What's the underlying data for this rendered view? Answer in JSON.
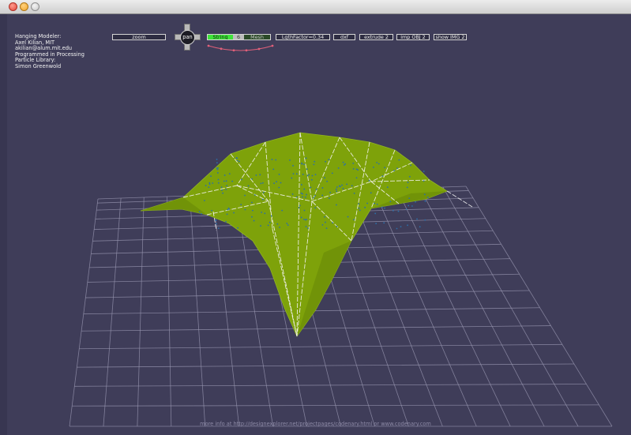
{
  "credits": {
    "line1": "Hanging Modeler:",
    "line2": "Axel Kilian, MIT",
    "line3": "akilian@alum.mit.edu",
    "line4": "Programmed in Processing",
    "line5": "Particle Library:",
    "line6": "Simon Greenwold"
  },
  "toolbar": {
    "zoom_label": "zoom",
    "pan_label": "pan",
    "string_label": "String",
    "slider_label": "6",
    "mesh_label": "Mesh",
    "length_factor_label": "LgthFactor=0.34",
    "dxf_label": "dxf",
    "extrude_label": "extrude 2",
    "import_obj_label": "imp OBJ 2",
    "show_img_label": "show IMG 2"
  },
  "footer": {
    "info_text": "more info at http://designexplorer.net/projectpages/codenary.html or www.codenary.com"
  },
  "colors": {
    "background": "#3f3d59",
    "mesh_fill": "#7ea20a",
    "grid_line": "#9896b0",
    "string_active": "#3fe33a",
    "node_dot": "#2c6fa8",
    "length_indicator": "#e0607a"
  }
}
